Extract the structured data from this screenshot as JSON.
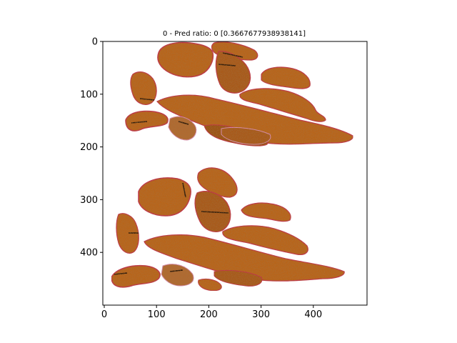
{
  "title": "0 - Pred ratio: 0 [0.3667677938938141]",
  "axes": {
    "x_ticks": [
      {
        "value": 0,
        "label": "0"
      },
      {
        "value": 100,
        "label": "100"
      },
      {
        "value": 200,
        "label": "200"
      },
      {
        "value": 300,
        "label": "300"
      },
      {
        "value": 400,
        "label": "400"
      }
    ],
    "y_ticks": [
      {
        "value": 0,
        "label": "0"
      },
      {
        "value": 100,
        "label": "100"
      },
      {
        "value": 200,
        "label": "200"
      },
      {
        "value": 300,
        "label": "300"
      },
      {
        "value": 400,
        "label": "400"
      }
    ],
    "xlim": [
      0,
      500
    ],
    "ylim": [
      500,
      0
    ]
  },
  "colors": {
    "tissue": "#b8651f",
    "tissue_dark": "#8a4512",
    "edge": "#c0304a",
    "pink": "#d88fb0"
  }
}
